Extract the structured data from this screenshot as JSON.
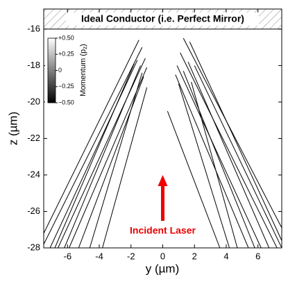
{
  "chart_data": {
    "type": "line",
    "xlabel": "y (µm)",
    "ylabel": "z (µm)",
    "xlim": [
      -7.5,
      7.5
    ],
    "xticks": [
      -6,
      -4,
      -2,
      0,
      2,
      4,
      6
    ],
    "ylim": [
      -28,
      -14.9
    ],
    "yticks": [
      -28,
      -26,
      -24,
      -22,
      -20,
      -18,
      -16
    ],
    "color": "#000000",
    "mirror_label": "Ideal Conductor (i.e. Perfect Mirror)",
    "arrow_label": "Incident Laser",
    "arrow_color": "#ee0000",
    "colorbar": {
      "label": "Momentum (p",
      "label_sub": "z",
      "label_end": ")",
      "lim": [
        -0.5,
        0.5
      ],
      "ticks": [
        {
          "value": 0.5,
          "label": "+0.50"
        },
        {
          "value": 0.25,
          "label": "+0.25"
        },
        0,
        {
          "value": -0.25,
          "label": "−0.25"
        },
        {
          "value": -0.5,
          "label": "−0.50"
        }
      ]
    },
    "series": [
      {
        "x": [
          -7.5,
          -1.5
        ],
        "values": [
          -27.2,
          -16.6
        ]
      },
      {
        "x": [
          -7.5,
          -1.3
        ],
        "values": [
          -27.8,
          -17.0
        ]
      },
      {
        "x": [
          -7.1,
          -1.6
        ],
        "values": [
          -28,
          -17.7
        ]
      },
      {
        "x": [
          -6.6,
          -1.1
        ],
        "values": [
          -28,
          -17.6
        ]
      },
      {
        "x": [
          -6.2,
          -1.4
        ],
        "values": [
          -28,
          -18.0
        ]
      },
      {
        "x": [
          -5.9,
          -1.0
        ],
        "values": [
          -28,
          -18.1
        ]
      },
      {
        "x": [
          -5.3,
          -1.2
        ],
        "values": [
          -28,
          -18.6
        ]
      },
      {
        "x": [
          -4.6,
          -1.3
        ],
        "values": [
          -28,
          -18.4
        ]
      },
      {
        "x": [
          -3.8,
          -1.0
        ],
        "values": [
          -28,
          -19.2
        ]
      },
      {
        "x": [
          -6.8,
          -1.8
        ],
        "values": [
          -28,
          -17.9
        ]
      },
      {
        "x": [
          7.5,
          1.3
        ],
        "values": [
          -26.9,
          -16.5
        ]
      },
      {
        "x": [
          7.5,
          1.7
        ],
        "values": [
          -27.6,
          -16.7
        ]
      },
      {
        "x": [
          7.2,
          1.1
        ],
        "values": [
          -28,
          -17.3
        ]
      },
      {
        "x": [
          6.7,
          1.6
        ],
        "values": [
          -28,
          -17.8
        ]
      },
      {
        "x": [
          6.2,
          0.9
        ],
        "values": [
          -28,
          -18.0
        ]
      },
      {
        "x": [
          5.8,
          1.3
        ],
        "values": [
          -28,
          -18.3
        ]
      },
      {
        "x": [
          5.4,
          0.8
        ],
        "values": [
          -28,
          -18.5
        ]
      },
      {
        "x": [
          4.7,
          1.8
        ],
        "values": [
          -28,
          -18.9
        ]
      },
      {
        "x": [
          3.6,
          0.3
        ],
        "values": [
          -28,
          -20.5
        ]
      },
      {
        "x": [
          7.5,
          2.0
        ],
        "values": [
          -28,
          -18.0
        ]
      },
      {
        "x": [
          4.2,
          1.0
        ],
        "values": [
          -28,
          -19.0
        ]
      }
    ]
  }
}
